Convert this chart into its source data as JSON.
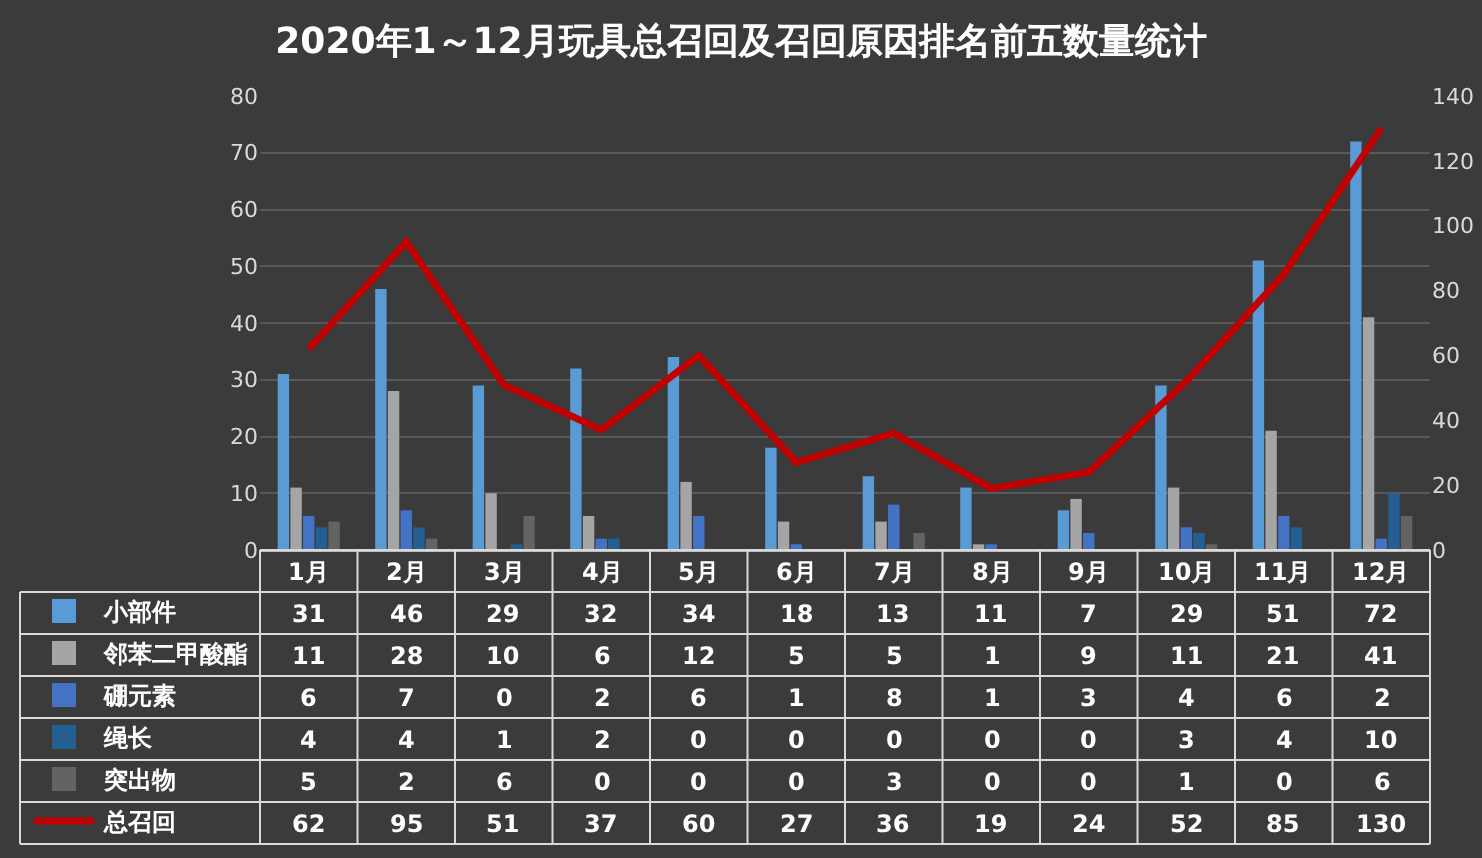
{
  "chart_data": {
    "type": "bar",
    "title": "2020年1～12月玩具总召回及召回原因排名前五数量统计",
    "categories": [
      "1月",
      "2月",
      "3月",
      "4月",
      "5月",
      "6月",
      "7月",
      "8月",
      "9月",
      "10月",
      "11月",
      "12月"
    ],
    "series": [
      {
        "name": "小部件",
        "color": "#5b9bd5",
        "values": [
          31,
          46,
          29,
          32,
          34,
          18,
          13,
          11,
          7,
          29,
          51,
          72
        ]
      },
      {
        "name": "邻苯二甲酸酯",
        "color": "#a5a5a5",
        "values": [
          11,
          28,
          10,
          6,
          12,
          5,
          5,
          1,
          9,
          11,
          21,
          41
        ]
      },
      {
        "name": "硼元素",
        "color": "#4472c4",
        "values": [
          6,
          7,
          0,
          2,
          6,
          1,
          8,
          1,
          3,
          4,
          6,
          2
        ]
      },
      {
        "name": "绳长",
        "color": "#255e91",
        "values": [
          4,
          4,
          1,
          2,
          0,
          0,
          0,
          0,
          0,
          3,
          4,
          10
        ]
      },
      {
        "name": "突出物",
        "color": "#636363",
        "values": [
          5,
          2,
          6,
          0,
          0,
          0,
          3,
          0,
          0,
          1,
          0,
          6
        ]
      },
      {
        "name": "总召回",
        "color": "#c00000",
        "type": "line",
        "axis": "y2",
        "values": [
          62,
          95,
          51,
          37,
          60,
          27,
          36,
          19,
          24,
          52,
          85,
          130
        ]
      }
    ],
    "ylim": [
      0,
      80
    ],
    "yticks": [
      0,
      10,
      20,
      30,
      40,
      50,
      60,
      70,
      80
    ],
    "y2lim": [
      0,
      140
    ],
    "y2ticks": [
      0,
      20,
      40,
      60,
      80,
      100,
      120,
      140
    ],
    "grid": "y",
    "legend": "bottom left",
    "data_labels": true,
    "marker": "none",
    "line_style": "solid"
  }
}
